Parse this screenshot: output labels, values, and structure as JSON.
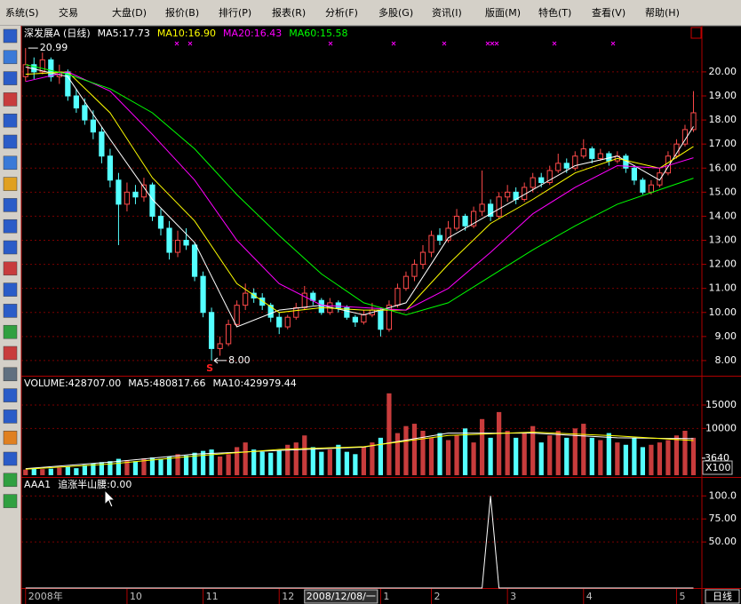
{
  "menu": [
    "系统(S)",
    "交易",
    "大盘(D)",
    "报价(B)",
    "排行(P)",
    "报表(R)",
    "分析(F)",
    "多股(G)",
    "资讯(I)",
    "版面(M)",
    "特色(T)",
    "查看(V)",
    "帮助(H)"
  ],
  "status": {
    "period": "日线"
  },
  "chart_data": [
    {
      "type": "candlestick",
      "title": "深发展A (日线)",
      "up_color": "#ff4a4a",
      "down_color": "#54ffff",
      "grid": true,
      "xlim": [
        -0.5,
        80
      ],
      "ylim": [
        7.37,
        21.88
      ],
      "yticks": [
        {
          "value": 8,
          "label": "8.00"
        },
        {
          "value": 9,
          "label": "9.00"
        },
        {
          "value": 10,
          "label": "10.00"
        },
        {
          "value": 11,
          "label": "11.00"
        },
        {
          "value": 12,
          "label": "12.00"
        },
        {
          "value": 13,
          "label": "13.00"
        },
        {
          "value": 14,
          "label": "14.00"
        },
        {
          "value": 15,
          "label": "15.00"
        },
        {
          "value": 16,
          "label": "16.00"
        },
        {
          "value": 17,
          "label": "17.00"
        },
        {
          "value": 18,
          "label": "18.00"
        },
        {
          "value": 19,
          "label": "19.00"
        },
        {
          "value": 20,
          "label": "20.00"
        }
      ],
      "xticks": [
        {
          "value": 0,
          "label": "2008年"
        },
        {
          "value": 12,
          "label": "10"
        },
        {
          "value": 21,
          "label": "11"
        },
        {
          "value": 30,
          "label": "12"
        },
        {
          "value": 42,
          "label": "1"
        },
        {
          "value": 48,
          "label": "2"
        },
        {
          "value": 57,
          "label": "3"
        },
        {
          "value": 66,
          "label": "4"
        },
        {
          "value": 77,
          "label": "5"
        }
      ],
      "cursor_label": {
        "value": 33,
        "label": "2008/12/08/一"
      },
      "high_label": 20.99,
      "low_label": {
        "value": 8,
        "label": "8.00"
      },
      "signal": "S",
      "candles": [
        [
          19.8,
          20.99,
          19.6,
          20.3
        ],
        [
          20.3,
          20.6,
          19.7,
          20.0
        ],
        [
          20.0,
          20.8,
          19.9,
          20.5
        ],
        [
          20.5,
          20.6,
          19.6,
          19.8
        ],
        [
          19.8,
          20.3,
          19.5,
          20.0
        ],
        [
          20.0,
          20.1,
          18.8,
          19.0
        ],
        [
          19.0,
          19.3,
          18.3,
          18.5
        ],
        [
          18.6,
          18.9,
          17.8,
          18.0
        ],
        [
          18.0,
          18.4,
          17.2,
          17.5
        ],
        [
          17.5,
          17.7,
          16.2,
          16.5
        ],
        [
          16.5,
          16.8,
          15.2,
          15.5
        ],
        [
          15.5,
          15.8,
          12.8,
          14.5
        ],
        [
          14.5,
          15.4,
          14.2,
          15.0
        ],
        [
          15.0,
          15.3,
          14.5,
          14.8
        ],
        [
          14.8,
          15.6,
          14.6,
          15.3
        ],
        [
          15.3,
          15.4,
          13.8,
          14.0
        ],
        [
          14.0,
          14.3,
          13.2,
          13.5
        ],
        [
          13.5,
          13.8,
          12.2,
          12.5
        ],
        [
          12.5,
          13.4,
          12.3,
          13.0
        ],
        [
          13.0,
          13.5,
          12.6,
          12.8
        ],
        [
          12.8,
          12.9,
          11.3,
          11.5
        ],
        [
          11.5,
          11.7,
          9.8,
          10.0
        ],
        [
          10.0,
          10.2,
          8.0,
          8.5
        ],
        [
          8.5,
          9.0,
          8.2,
          8.7
        ],
        [
          8.7,
          9.7,
          8.6,
          9.5
        ],
        [
          9.5,
          10.5,
          9.4,
          10.3
        ],
        [
          10.3,
          11.2,
          10.1,
          10.8
        ],
        [
          10.8,
          11.0,
          10.4,
          10.6
        ],
        [
          10.6,
          10.8,
          10.1,
          10.3
        ],
        [
          10.3,
          10.4,
          9.6,
          9.8
        ],
        [
          9.8,
          10.0,
          9.1,
          9.4
        ],
        [
          9.4,
          9.9,
          9.3,
          9.8
        ],
        [
          9.8,
          10.4,
          9.7,
          10.2
        ],
        [
          10.2,
          11.1,
          10.1,
          10.8
        ],
        [
          10.8,
          10.9,
          10.3,
          10.5
        ],
        [
          10.5,
          10.6,
          9.9,
          10.0
        ],
        [
          10.0,
          10.6,
          9.9,
          10.4
        ],
        [
          10.4,
          10.5,
          10.0,
          10.2
        ],
        [
          10.2,
          10.3,
          9.7,
          9.8
        ],
        [
          9.8,
          9.9,
          9.4,
          9.6
        ],
        [
          9.6,
          10.1,
          9.5,
          9.9
        ],
        [
          9.9,
          10.4,
          9.8,
          10.1
        ],
        [
          10.1,
          10.2,
          9.0,
          9.3
        ],
        [
          9.3,
          10.5,
          9.2,
          10.3
        ],
        [
          10.3,
          11.2,
          10.2,
          11.0
        ],
        [
          11.0,
          11.7,
          10.9,
          11.5
        ],
        [
          11.5,
          12.2,
          11.3,
          12.0
        ],
        [
          12.0,
          12.8,
          11.8,
          12.5
        ],
        [
          12.5,
          13.4,
          12.3,
          13.2
        ],
        [
          13.2,
          13.5,
          12.8,
          13.0
        ],
        [
          13.0,
          13.8,
          12.9,
          13.5
        ],
        [
          13.5,
          14.3,
          13.4,
          14.0
        ],
        [
          14.0,
          14.1,
          13.4,
          13.6
        ],
        [
          13.6,
          14.4,
          13.5,
          14.2
        ],
        [
          14.2,
          15.9,
          14.0,
          14.5
        ],
        [
          14.5,
          14.7,
          13.8,
          14.0
        ],
        [
          14.0,
          15.0,
          13.9,
          14.8
        ],
        [
          14.8,
          15.3,
          14.6,
          15.0
        ],
        [
          15.0,
          15.2,
          14.5,
          14.7
        ],
        [
          14.7,
          15.4,
          14.6,
          15.2
        ],
        [
          15.2,
          15.8,
          15.0,
          15.6
        ],
        [
          15.6,
          15.8,
          15.2,
          15.4
        ],
        [
          15.4,
          16.1,
          15.3,
          15.9
        ],
        [
          15.9,
          16.6,
          15.8,
          16.2
        ],
        [
          16.2,
          16.4,
          15.8,
          16.0
        ],
        [
          16.0,
          16.7,
          15.9,
          16.5
        ],
        [
          16.5,
          17.2,
          16.4,
          16.8
        ],
        [
          16.8,
          16.9,
          16.2,
          16.4
        ],
        [
          16.4,
          16.8,
          16.3,
          16.6
        ],
        [
          16.6,
          16.7,
          16.1,
          16.3
        ],
        [
          16.3,
          16.7,
          16.2,
          16.5
        ],
        [
          16.5,
          16.6,
          15.8,
          16.0
        ],
        [
          16.0,
          16.1,
          15.3,
          15.5
        ],
        [
          15.5,
          15.6,
          14.9,
          15.0
        ],
        [
          15.0,
          15.5,
          14.9,
          15.3
        ],
        [
          15.3,
          16.0,
          15.2,
          15.8
        ],
        [
          15.8,
          16.7,
          15.7,
          16.5
        ],
        [
          16.5,
          17.2,
          16.4,
          17.0
        ],
        [
          17.0,
          17.8,
          16.9,
          17.6
        ],
        [
          17.6,
          19.2,
          17.5,
          18.3
        ]
      ],
      "series": [
        {
          "name": "MA5:17.73",
          "color": "#ffffff",
          "x": [
            0,
            5,
            10,
            15,
            20,
            25,
            30,
            35,
            40,
            45,
            50,
            55,
            60,
            65,
            70,
            75,
            79
          ],
          "values": [
            20.2,
            19.8,
            17.2,
            14.7,
            12.9,
            9.4,
            10.1,
            10.3,
            9.9,
            10.4,
            13.1,
            14.1,
            15.1,
            16.1,
            16.5,
            15.5,
            17.73
          ]
        },
        {
          "name": "MA10:16.90",
          "color": "#ffff00",
          "x": [
            0,
            5,
            10,
            15,
            20,
            25,
            30,
            35,
            40,
            45,
            50,
            55,
            60,
            65,
            70,
            75,
            79
          ],
          "values": [
            19.9,
            20.0,
            18.3,
            15.6,
            13.8,
            11.2,
            10.0,
            10.2,
            10.1,
            10.1,
            12.0,
            13.7,
            14.7,
            15.8,
            16.4,
            16.0,
            16.9
          ]
        },
        {
          "name": "MA20:16.43",
          "color": "#ff00ff",
          "x": [
            0,
            5,
            10,
            15,
            20,
            25,
            30,
            35,
            40,
            45,
            50,
            55,
            60,
            65,
            70,
            75,
            79
          ],
          "values": [
            19.6,
            20.0,
            19.2,
            17.4,
            15.5,
            13.0,
            11.2,
            10.3,
            10.2,
            10.1,
            11.0,
            12.5,
            14.1,
            15.2,
            16.1,
            16.0,
            16.43
          ]
        },
        {
          "name": "MA60:15.58",
          "color": "#00ff00",
          "x": [
            0,
            5,
            10,
            15,
            20,
            25,
            30,
            35,
            40,
            45,
            50,
            55,
            60,
            65,
            70,
            75,
            79
          ],
          "values": [
            20.3,
            19.9,
            19.3,
            18.3,
            16.8,
            14.9,
            13.2,
            11.6,
            10.4,
            9.9,
            10.4,
            11.5,
            12.6,
            13.6,
            14.5,
            15.1,
            15.58
          ]
        }
      ]
    },
    {
      "type": "bar",
      "ylim": [
        0,
        21076
      ],
      "yticks": [
        15000,
        10000
      ],
      "marker_label": 3640,
      "unit_label": "X100",
      "series": [
        {
          "name": "VOLUME:428707.00",
          "values": [
            1200,
            1500,
            1300,
            1400,
            1600,
            1800,
            1500,
            2200,
            2500,
            2800,
            3000,
            3500,
            3200,
            3000,
            3600,
            3800,
            3500,
            4000,
            4500,
            4200,
            4800,
            5200,
            5500,
            4000,
            4500,
            6000,
            7000,
            5500,
            5000,
            4800,
            5200,
            6500,
            7000,
            8500,
            6000,
            5000,
            5500,
            6500,
            5000,
            4500,
            6000,
            7000,
            8000,
            17500,
            9000,
            10500,
            11000,
            9500,
            8000,
            9000,
            7500,
            8500,
            10000,
            7000,
            12000,
            8000,
            13500,
            9500,
            8000,
            9000,
            10500,
            7000,
            8500,
            9500,
            8000,
            10000,
            11000,
            8000,
            7500,
            9000,
            7000,
            6500,
            8000,
            6000,
            6500,
            7000,
            7500,
            8500,
            9500,
            8000
          ]
        },
        {
          "name": "MA5:480817.66",
          "color": "#ffffff",
          "x": [
            0,
            10,
            20,
            30,
            40,
            50,
            60,
            70,
            79
          ],
          "values": [
            1400,
            2800,
            4500,
            5300,
            6000,
            9000,
            9000,
            8000,
            7800
          ]
        },
        {
          "name": "MA10:429979.44",
          "color": "#ffff00",
          "x": [
            0,
            10,
            20,
            30,
            40,
            50,
            60,
            70,
            79
          ],
          "values": [
            1300,
            2400,
            4100,
            5500,
            6100,
            8500,
            9200,
            8400,
            7400
          ]
        }
      ]
    },
    {
      "type": "line",
      "title": "AAA1",
      "ylim": [
        0,
        119.6
      ],
      "yticks": [
        {
          "value": 100,
          "label": "100.0"
        },
        {
          "value": 75,
          "label": "75.00"
        },
        {
          "value": 50,
          "label": "50.00"
        }
      ],
      "series": [
        {
          "name": "追涨半山腰:0.00",
          "color": "#ffffff",
          "x": [
            0,
            54,
            55,
            56,
            79
          ],
          "values": [
            0,
            0,
            100,
            0,
            0
          ]
        }
      ]
    }
  ]
}
